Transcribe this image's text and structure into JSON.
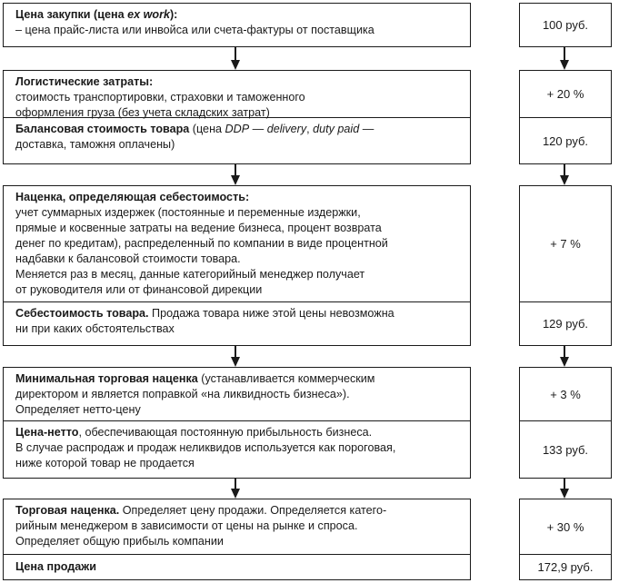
{
  "steps": [
    {
      "cells": [
        {
          "title": "Цена закупки (цена ",
          "title_italic": "ex work",
          "title_end": "):",
          "lines": [
            "– цена прайс-листа или инвойса или счета-фактуры от поставщика"
          ]
        }
      ],
      "values": [
        "100 руб."
      ]
    },
    {
      "cells": [
        {
          "title": "Логистические затраты:",
          "lines": [
            "стоимость транспортировки, страховки и таможенного",
            "оформления груза (без учета складских затрат)"
          ]
        },
        {
          "title": "Балансовая стоимость товара",
          "t1": " (цена ",
          "i1": "DDP",
          "t2": " — ",
          "i2": "delivery",
          "t3": ", ",
          "i3": "duty paid",
          "t4": " —",
          "lines": [
            "доставка, таможня оплачены)"
          ]
        }
      ],
      "values": [
        "+ 20 %",
        "120 руб."
      ]
    },
    {
      "cells": [
        {
          "title": "Наценка, определяющая себестоимость:",
          "lines": [
            "учет суммарных издержек (постоянные и переменные издержки,",
            "прямые и косвенные затраты на ведение бизнеса, процент возврата",
            "денег по кредитам), распределенный по компании в виде процентной",
            "надбавки к балансовой стоимости товара.",
            "Меняется раз в месяц, данные категорийный менеджер получает",
            "от руководителя или от финансовой дирекции"
          ]
        },
        {
          "title": "Себестоимость товара.",
          "rest": " Продажа товара ниже этой цены невозможна",
          "lines": [
            "ни при каких обстоятельствах"
          ]
        }
      ],
      "values": [
        "+ 7 %",
        "129 руб."
      ]
    },
    {
      "cells": [
        {
          "title": "Минимальная торговая наценка",
          "rest": " (устанавливается коммерческим",
          "lines": [
            "директором и является поправкой «на ликвидность бизнеса»).",
            "Определяет нетто-цену"
          ]
        },
        {
          "title": "Цена-нетто",
          "rest": ", обеспечивающая постоянную прибыльность бизнеса.",
          "lines": [
            "В случае распродаж и продаж неликвидов используется как пороговая,",
            "ниже которой товар не продается"
          ]
        }
      ],
      "values": [
        "+ 3 %",
        "133 руб."
      ]
    },
    {
      "cells": [
        {
          "title": "Торговая наценка.",
          "rest": " Определяет цену продажи. Определяется катего-",
          "lines": [
            "рийным менеджером в зависимости от цены на рынке и спроса.",
            "Определяет общую прибыль компании"
          ]
        },
        {
          "title": "Цена продажи",
          "lines": []
        }
      ],
      "values": [
        "+ 30 %",
        "172,9 руб."
      ]
    }
  ]
}
